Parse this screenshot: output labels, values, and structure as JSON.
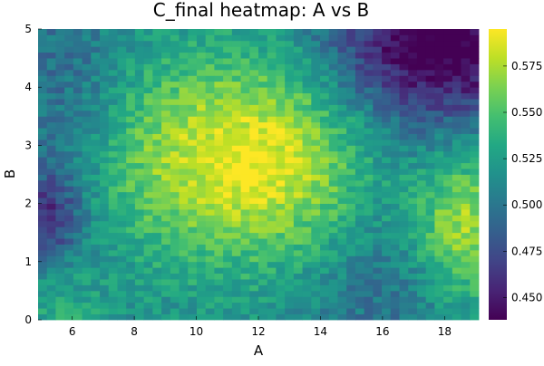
{
  "chart_data": {
    "type": "heatmap",
    "title": "C_final heatmap: A vs B",
    "xlabel": "A",
    "ylabel": "B",
    "xlim": [
      4.9,
      19.1
    ],
    "ylim": [
      0,
      5
    ],
    "x_ticks": [
      6,
      8,
      10,
      12,
      14,
      16,
      18
    ],
    "y_ticks": [
      0,
      1,
      2,
      3,
      4,
      5
    ],
    "colorbar": {
      "colormap": "viridis",
      "range": [
        0.438,
        0.595
      ],
      "ticks": [
        0.45,
        0.475,
        0.5,
        0.525,
        0.55,
        0.575
      ],
      "tick_labels": [
        "0.450",
        "0.475",
        "0.500",
        "0.525",
        "0.550",
        "0.575"
      ]
    },
    "grid": false,
    "value_field_description": "C_final over A (approx 4.9–19.1) and B (0–5); approx 50×50 cells",
    "field_features": [
      {
        "A": 9.5,
        "B": 3.4,
        "C": 0.585
      },
      {
        "A": 11.8,
        "B": 2.4,
        "C": 0.575
      },
      {
        "A": 13.5,
        "B": 3.0,
        "C": 0.57
      },
      {
        "A": 18.4,
        "B": 1.5,
        "C": 0.58
      },
      {
        "A": 17.5,
        "B": 4.6,
        "C": 0.445
      },
      {
        "A": 5.5,
        "B": 1.8,
        "C": 0.47
      },
      {
        "A": 5.5,
        "B": 0.2,
        "C": 0.54
      },
      {
        "A": 15.5,
        "B": 0.3,
        "C": 0.51
      },
      {
        "A": 6.5,
        "B": 4.6,
        "C": 0.51
      }
    ],
    "grid_size": {
      "nx": 50,
      "ny": 50
    }
  }
}
